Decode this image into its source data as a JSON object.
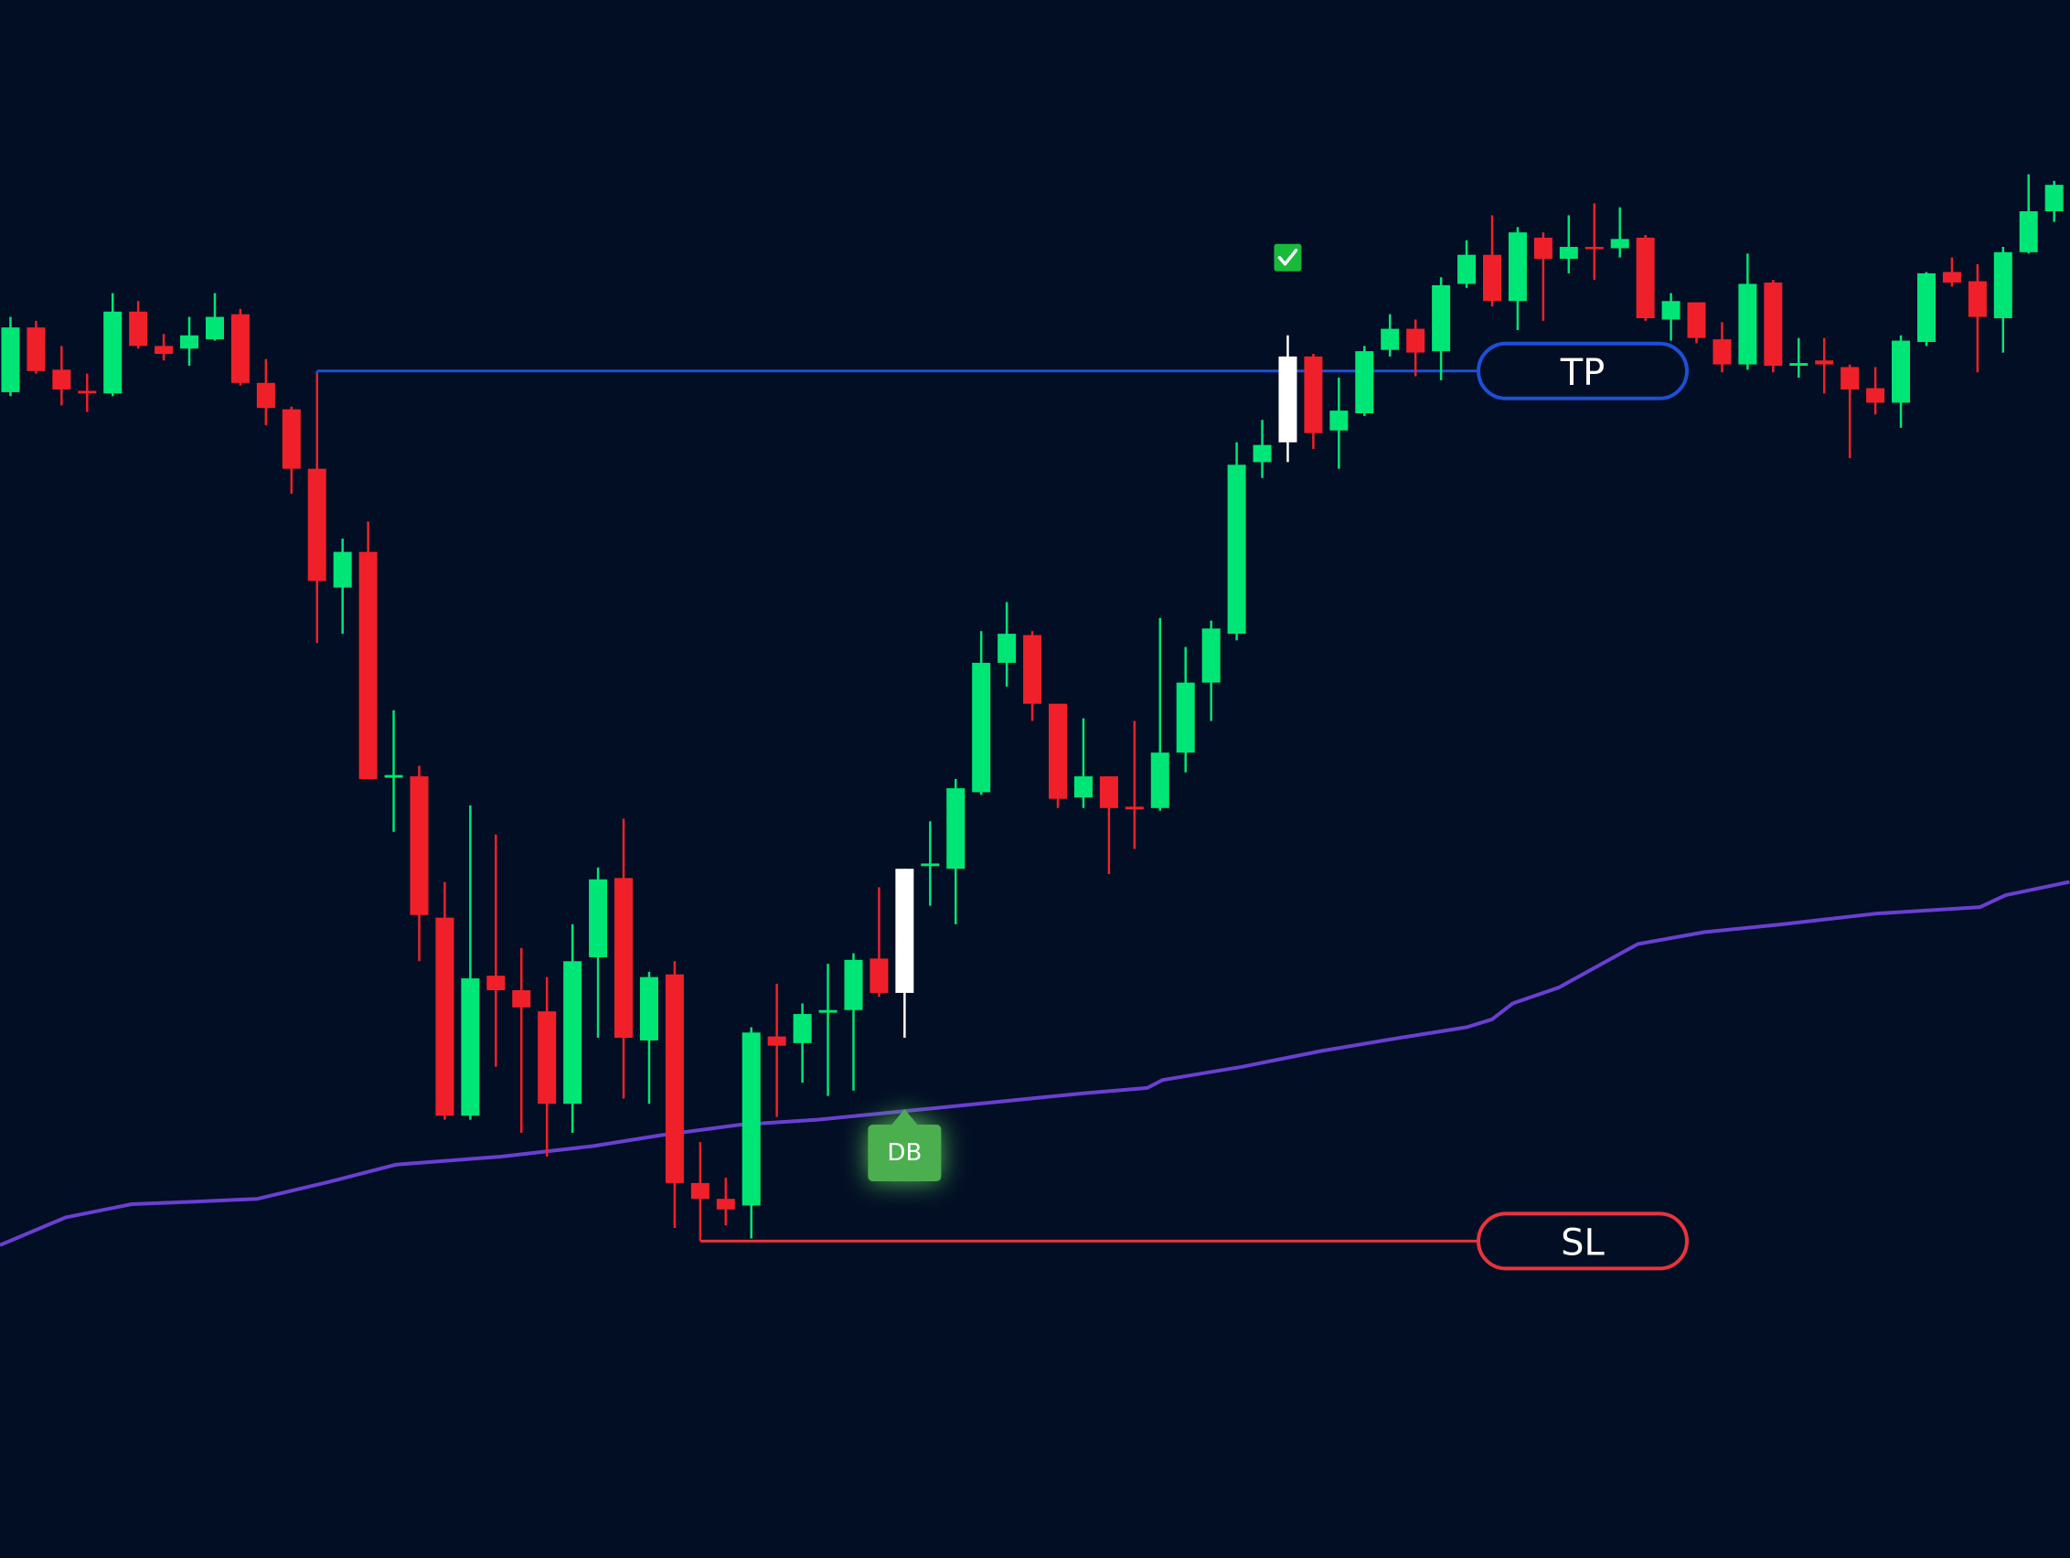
{
  "chart_data": {
    "type": "candlestick",
    "up_color": "#00e676",
    "down_color": "#f0202a",
    "signal_color": "#ffffff",
    "signal_candles": [
      35,
      50
    ],
    "xlim": [
      -0.41,
      80.62
    ],
    "ylim": [
      0,
      1180
    ],
    "ohlc": [
      [
        883,
        940,
        880,
        932
      ],
      [
        932,
        937,
        897,
        899
      ],
      [
        900,
        918,
        873,
        885
      ],
      [
        884,
        897,
        868,
        882
      ],
      [
        882,
        958,
        880,
        944
      ],
      [
        944,
        952,
        916,
        918
      ],
      [
        918,
        927,
        907,
        912
      ],
      [
        916,
        940,
        903,
        926
      ],
      [
        923,
        958,
        922,
        940
      ],
      [
        942,
        946,
        888,
        890
      ],
      [
        890,
        908,
        858,
        871
      ],
      [
        870,
        872,
        806,
        825
      ],
      [
        825,
        897,
        693,
        740
      ],
      [
        735,
        772,
        700,
        762
      ],
      [
        762,
        785,
        590,
        590
      ],
      [
        591,
        642,
        550,
        593
      ],
      [
        592,
        600,
        452,
        487
      ],
      [
        485,
        512,
        332,
        335
      ],
      [
        335,
        570,
        332,
        439
      ],
      [
        441,
        548,
        372,
        430
      ],
      [
        430,
        462,
        322,
        417
      ],
      [
        414,
        440,
        304,
        344
      ],
      [
        344,
        480,
        322,
        452
      ],
      [
        455,
        523,
        394,
        514
      ],
      [
        515,
        560,
        348,
        394
      ],
      [
        392,
        444,
        344,
        440
      ],
      [
        442,
        452,
        250,
        284
      ],
      [
        284,
        315,
        240,
        272
      ],
      [
        272,
        288,
        252,
        264
      ],
      [
        267,
        402,
        242,
        398
      ],
      [
        395,
        435,
        334,
        388
      ],
      [
        390,
        420,
        360,
        412
      ],
      [
        413,
        450,
        350,
        415
      ],
      [
        415,
        458,
        354,
        453
      ],
      [
        454,
        508,
        425,
        428
      ],
      [
        428,
        522,
        394,
        522
      ],
      [
        524,
        558,
        494,
        526
      ],
      [
        522,
        590,
        480,
        583
      ],
      [
        580,
        702,
        578,
        678
      ],
      [
        678,
        724,
        660,
        700
      ],
      [
        699,
        702,
        634,
        647
      ],
      [
        647,
        647,
        568,
        575
      ],
      [
        576,
        636,
        568,
        592
      ],
      [
        592,
        592,
        518,
        568
      ],
      [
        569,
        634,
        537,
        567
      ],
      [
        568,
        712,
        566,
        610
      ],
      [
        610,
        690,
        595,
        663
      ],
      [
        663,
        710,
        634,
        704
      ],
      [
        700,
        845,
        695,
        828
      ],
      [
        830,
        862,
        818,
        843
      ],
      [
        845,
        926,
        830,
        910
      ],
      [
        910,
        912,
        840,
        852
      ],
      [
        854,
        894,
        825,
        869
      ],
      [
        867,
        918,
        865,
        914
      ],
      [
        915,
        942,
        910,
        931
      ],
      [
        931,
        938,
        895,
        913
      ],
      [
        914,
        970,
        892,
        964
      ],
      [
        965,
        998,
        962,
        987
      ],
      [
        987,
        1017,
        948,
        952
      ],
      [
        952,
        1008,
        930,
        1004
      ],
      [
        1000,
        1004,
        937,
        984
      ],
      [
        984,
        1017,
        973,
        993
      ],
      [
        993,
        1026,
        968,
        992
      ],
      [
        992,
        1023,
        985,
        999
      ],
      [
        1000,
        1002,
        937,
        939
      ],
      [
        938,
        958,
        922,
        952
      ],
      [
        951,
        951,
        920,
        924
      ],
      [
        923,
        936,
        898,
        904
      ],
      [
        904,
        988,
        900,
        965
      ],
      [
        966,
        968,
        898,
        903
      ],
      [
        903,
        924,
        894,
        905
      ],
      [
        907,
        924,
        882,
        904
      ],
      [
        902,
        904,
        833,
        885
      ],
      [
        886,
        902,
        866,
        875
      ],
      [
        875,
        926,
        856,
        922
      ],
      [
        921,
        974,
        918,
        973
      ],
      [
        974,
        985,
        963,
        966
      ],
      [
        967,
        980,
        898,
        940
      ],
      [
        939,
        993,
        913,
        989
      ],
      [
        989,
        1048,
        988,
        1020
      ],
      [
        1020,
        1043,
        1012,
        1040
      ]
    ],
    "ma": {
      "color": "#6a3fd0",
      "x": [
        -0.41,
        2.17,
        4.75,
        7.34,
        9.66,
        12.5,
        15.1,
        19.2,
        22.8,
        25.4,
        28.5,
        31.6,
        35.8,
        38.9,
        42.0,
        44.5,
        45.1,
        48.2,
        51.3,
        54.4,
        57.0,
        58.0,
        58.8,
        60.6,
        62.1,
        63.7,
        66.3,
        69.4,
        73.0,
        77.1,
        78.1,
        80.6
      ],
      "values": [
        237,
        258,
        268,
        270,
        272,
        285,
        298,
        304,
        312,
        320,
        328,
        332,
        340,
        346,
        352,
        356,
        362,
        372,
        384,
        394,
        402,
        408,
        420,
        432,
        448,
        465,
        474,
        480,
        488,
        493,
        502,
        512
      ]
    },
    "levels": [
      {
        "label": "TP",
        "value": 899,
        "start": 12,
        "color": "#1d4fd8"
      },
      {
        "label": "SL",
        "value": 240,
        "start": 27,
        "color": "#e8343c"
      }
    ],
    "markers": [
      {
        "label": "DB",
        "index": 35,
        "color": "#4caf50"
      }
    ]
  }
}
